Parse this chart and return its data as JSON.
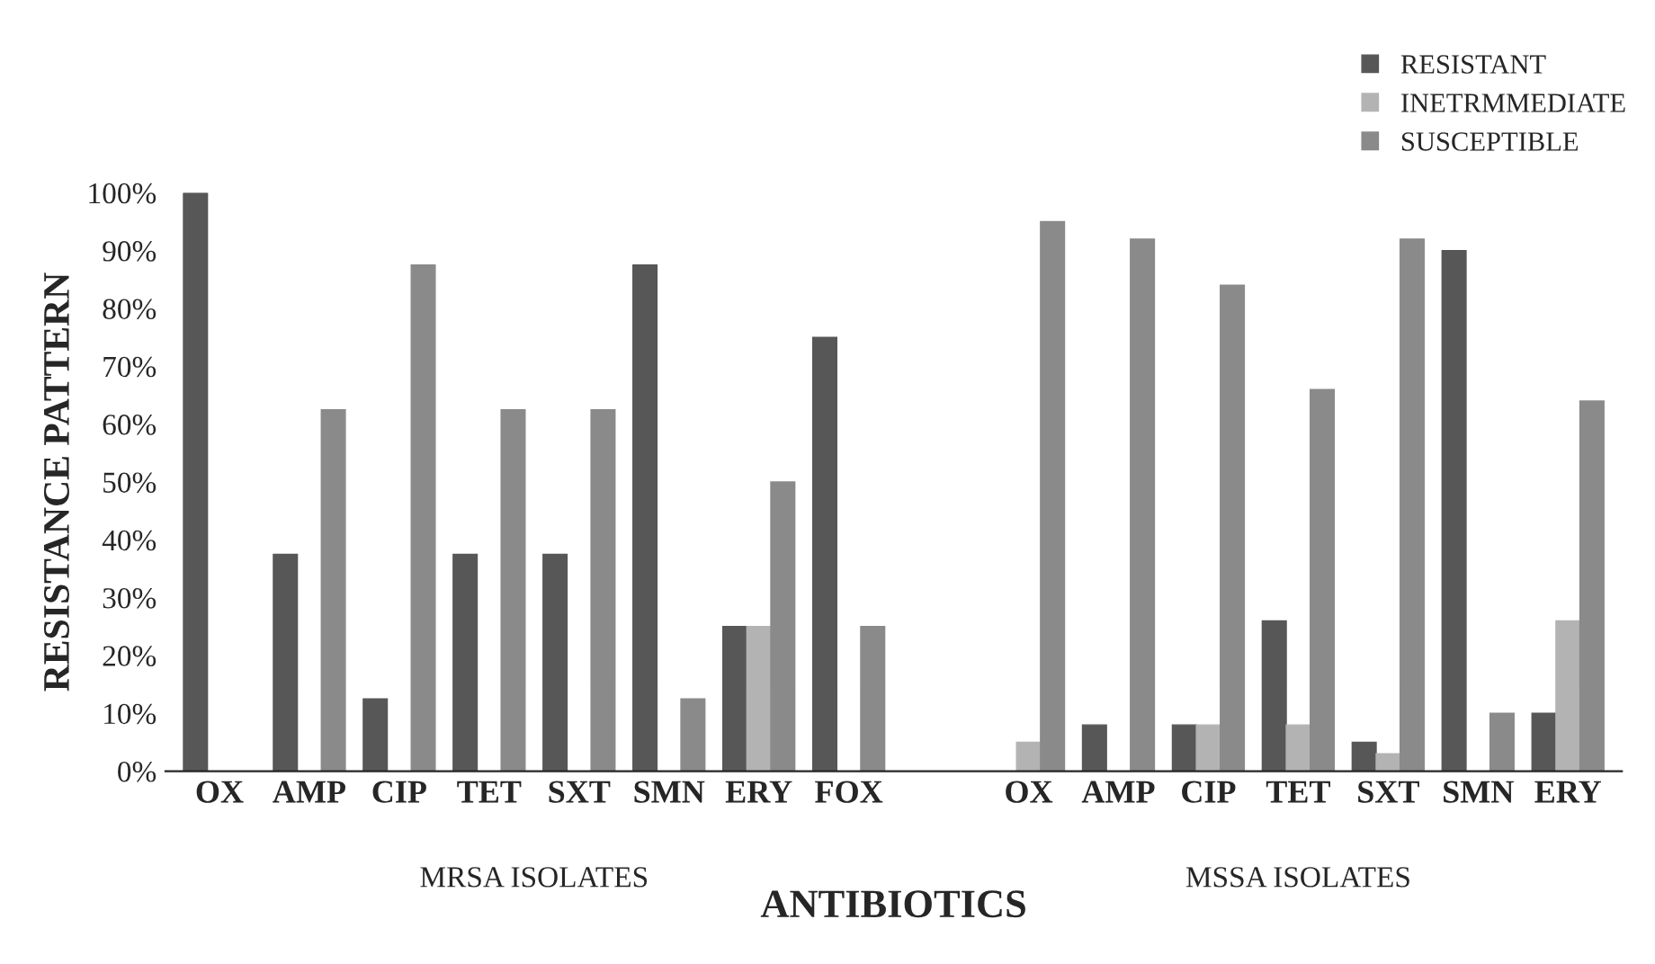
{
  "chart_data": {
    "type": "bar",
    "xlabel": "ANTIBIOTICS",
    "ylabel": "RESISTANCE PATTERN",
    "categories": [
      "OX",
      "AMP",
      "CIP",
      "TET",
      "SXT",
      "SMN",
      "ERY",
      "FOX",
      null,
      "OX",
      "AMP",
      "CIP",
      "TET",
      "SXT",
      "SMN",
      "ERY"
    ],
    "series": [
      {
        "name": "RESISTANT",
        "color": "#575757",
        "values": [
          100,
          37.5,
          12.5,
          37.5,
          37.5,
          87.5,
          25,
          75,
          0,
          0,
          8,
          8,
          26,
          5,
          90,
          10
        ]
      },
      {
        "name": "INETRMMEDIATE",
        "color": "#b3b3b3",
        "values": [
          0,
          0,
          0,
          0,
          0,
          0,
          25,
          0,
          0,
          5,
          0,
          8,
          8,
          3,
          0,
          26
        ]
      },
      {
        "name": "SUSCEPTIBLE",
        "color": "#8a8a8a",
        "values": [
          0,
          62.5,
          87.5,
          62.5,
          62.5,
          12.5,
          50,
          25,
          0,
          95,
          92,
          84,
          66,
          92,
          10,
          64
        ]
      }
    ],
    "ylim": [
      0,
      100
    ],
    "yticks": [
      {
        "value": 0,
        "label": "0%"
      },
      {
        "value": 10,
        "label": "10%"
      },
      {
        "value": 20,
        "label": "20%"
      },
      {
        "value": 30,
        "label": "30%"
      },
      {
        "value": 40,
        "label": "40%"
      },
      {
        "value": 50,
        "label": "50%"
      },
      {
        "value": 60,
        "label": "60%"
      },
      {
        "value": 70,
        "label": "70%"
      },
      {
        "value": 80,
        "label": "80%"
      },
      {
        "value": 90,
        "label": "90%"
      },
      {
        "value": 100,
        "label": "100%"
      }
    ],
    "grid": false,
    "legend": "top right",
    "annotations": [
      "MRSA ISOLATES",
      "MSSA ISOLATES"
    ]
  }
}
